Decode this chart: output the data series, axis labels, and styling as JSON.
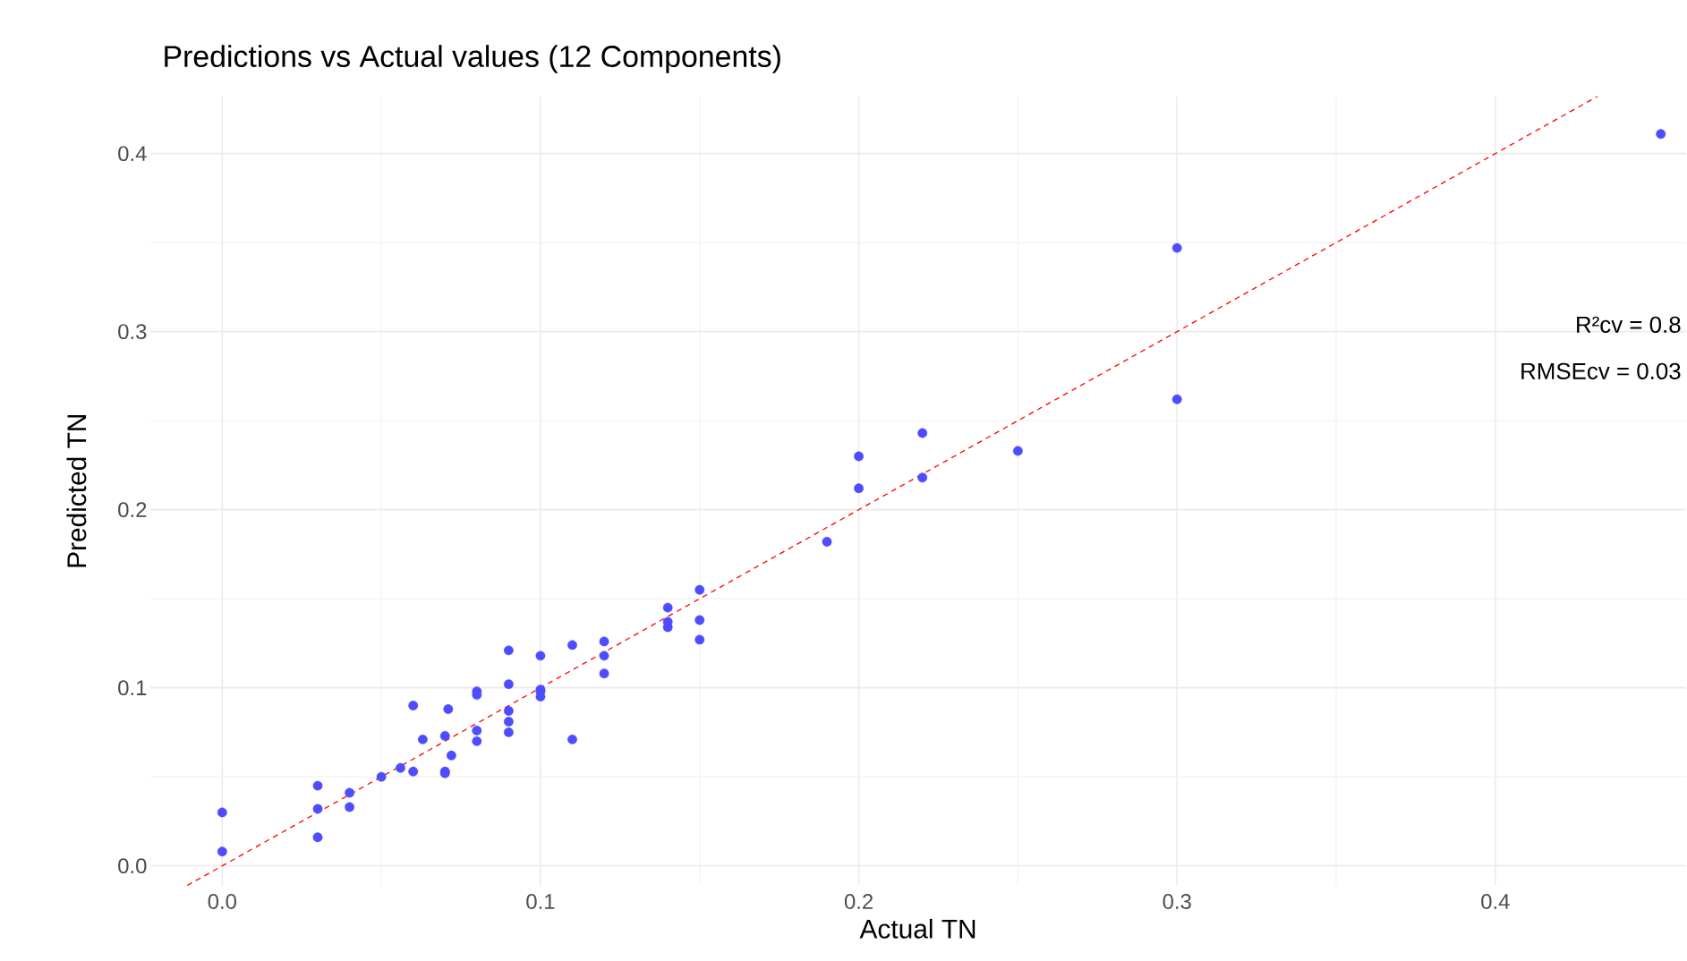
{
  "chart_data": {
    "type": "scatter",
    "title": "Predictions vs Actual values (12 Components)",
    "xlabel": "Actual TN",
    "ylabel": "Predicted TN",
    "annotations": [
      "R²cv = 0.8",
      "RMSEcv = 0.03"
    ],
    "xlim": [
      -0.0226,
      0.46
    ],
    "ylim": [
      -0.011,
      0.432
    ],
    "xticks": [
      {
        "value": 0,
        "label": "0.0"
      },
      0.1,
      0.2,
      0.3,
      0.4
    ],
    "yticks": [
      {
        "value": 0,
        "label": "0.0"
      },
      0.1,
      0.2,
      0.3,
      0.4
    ],
    "grid": true,
    "series": [
      {
        "color": "#4d4dff",
        "marker": "circle",
        "x": [
          0,
          0,
          0.03,
          0.03,
          0.03,
          0.04,
          0.04,
          0.05,
          0.056,
          0.06,
          0.06,
          0.063,
          0.07,
          0.07,
          0.07,
          0.071,
          0.072,
          0.08,
          0.08,
          0.08,
          0.08,
          0.09,
          0.09,
          0.09,
          0.09,
          0.09,
          0.1,
          0.1,
          0.1,
          0.1,
          0.11,
          0.11,
          0.12,
          0.12,
          0.12,
          0.14,
          0.14,
          0.14,
          0.15,
          0.15,
          0.15,
          0.19,
          0.2,
          0.2,
          0.22,
          0.22,
          0.25,
          0.3,
          0.3,
          0.452
        ],
        "values": [
          0.03,
          0.008,
          0.045,
          0.032,
          0.016,
          0.041,
          0.033,
          0.05,
          0.055,
          0.053,
          0.09,
          0.071,
          0.073,
          0.053,
          0.052,
          0.088,
          0.062,
          0.098,
          0.096,
          0.076,
          0.07,
          0.121,
          0.102,
          0.087,
          0.081,
          0.075,
          0.118,
          0.099,
          0.098,
          0.095,
          0.124,
          0.071,
          0.126,
          0.118,
          0.108,
          0.145,
          0.137,
          0.134,
          0.155,
          0.138,
          0.127,
          0.182,
          0.23,
          0.212,
          0.243,
          0.218,
          0.233,
          0.347,
          0.262,
          0.411
        ]
      },
      {
        "type": "line",
        "color": "#ff0000",
        "line_style": "dashed",
        "marker": "none",
        "x": [
          -0.011,
          0.432
        ],
        "values": [
          -0.011,
          0.432
        ]
      }
    ]
  }
}
